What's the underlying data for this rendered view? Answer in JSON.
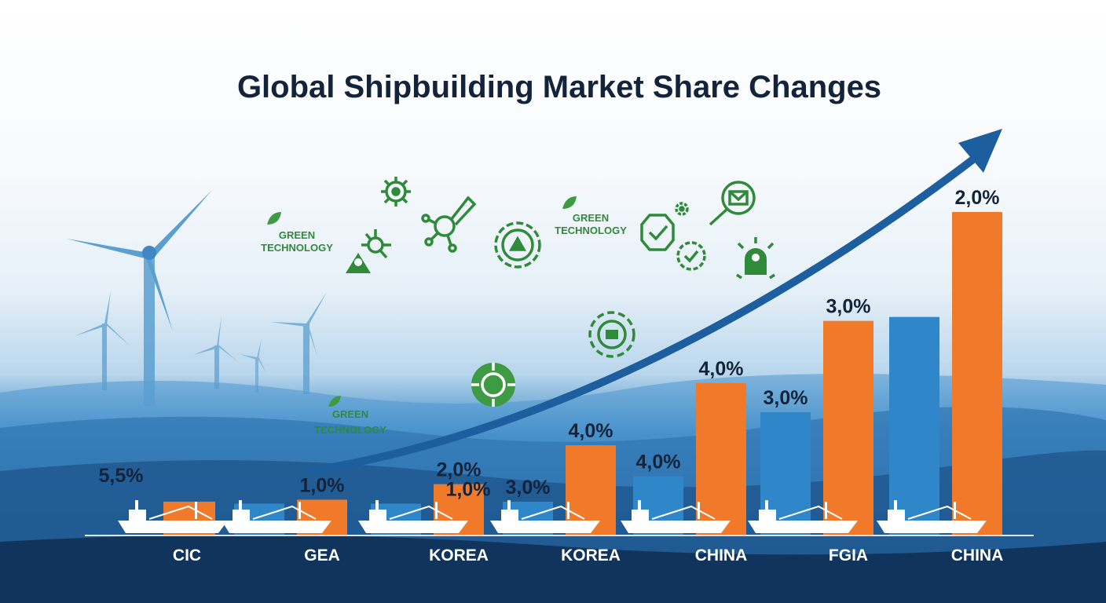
{
  "chart_data": {
    "type": "bar",
    "title": "Global Shipbuilding Market Share Changes",
    "categories": [
      "CIC",
      "GEA",
      "KOREA",
      "KOREA",
      "CHINA",
      "FGIA",
      "CHINA"
    ],
    "series": [
      {
        "color": "#2f86c9",
        "values": [
          null,
          1.6,
          1.6,
          1.7,
          3.0,
          6.3,
          11.2
        ]
      },
      {
        "color": "#f07a2a",
        "values": [
          1.7,
          1.8,
          2.6,
          4.6,
          7.8,
          11.0,
          16.6
        ]
      }
    ],
    "data_labels": [
      "5,5%",
      "1,0%",
      "2,0%",
      "1,0%",
      "4,0%",
      "3,0%",
      "4,0%",
      "4,0%",
      "3,0%",
      "3,0%",
      "2,0%"
    ],
    "ylim": [
      0,
      18
    ],
    "grid": false,
    "legend": "none"
  },
  "decorations": {
    "green_badges": [
      [
        "GREEN",
        "TECHNOLOGY"
      ],
      [
        "GREEN",
        "TECHNOLOGY"
      ],
      [
        "GREEN",
        "TECHNOLOGY"
      ]
    ],
    "icons": [
      "virus-icon",
      "eco-person-icon",
      "network-icon",
      "nodes-pen-icon",
      "recycle-gear-icon",
      "gear-small-icon",
      "check-shield-icon",
      "check-circle-icon",
      "magnifier-mail-icon",
      "eco-worker-icon",
      "eco-badge-icon",
      "target-icon",
      "wind-turbine-icon",
      "trend-arrow-icon",
      "ship-icon"
    ],
    "colors": {
      "accent_green": "#2f8a3a",
      "arrow_blue": "#1d5e9e",
      "title": "#13243a"
    }
  }
}
